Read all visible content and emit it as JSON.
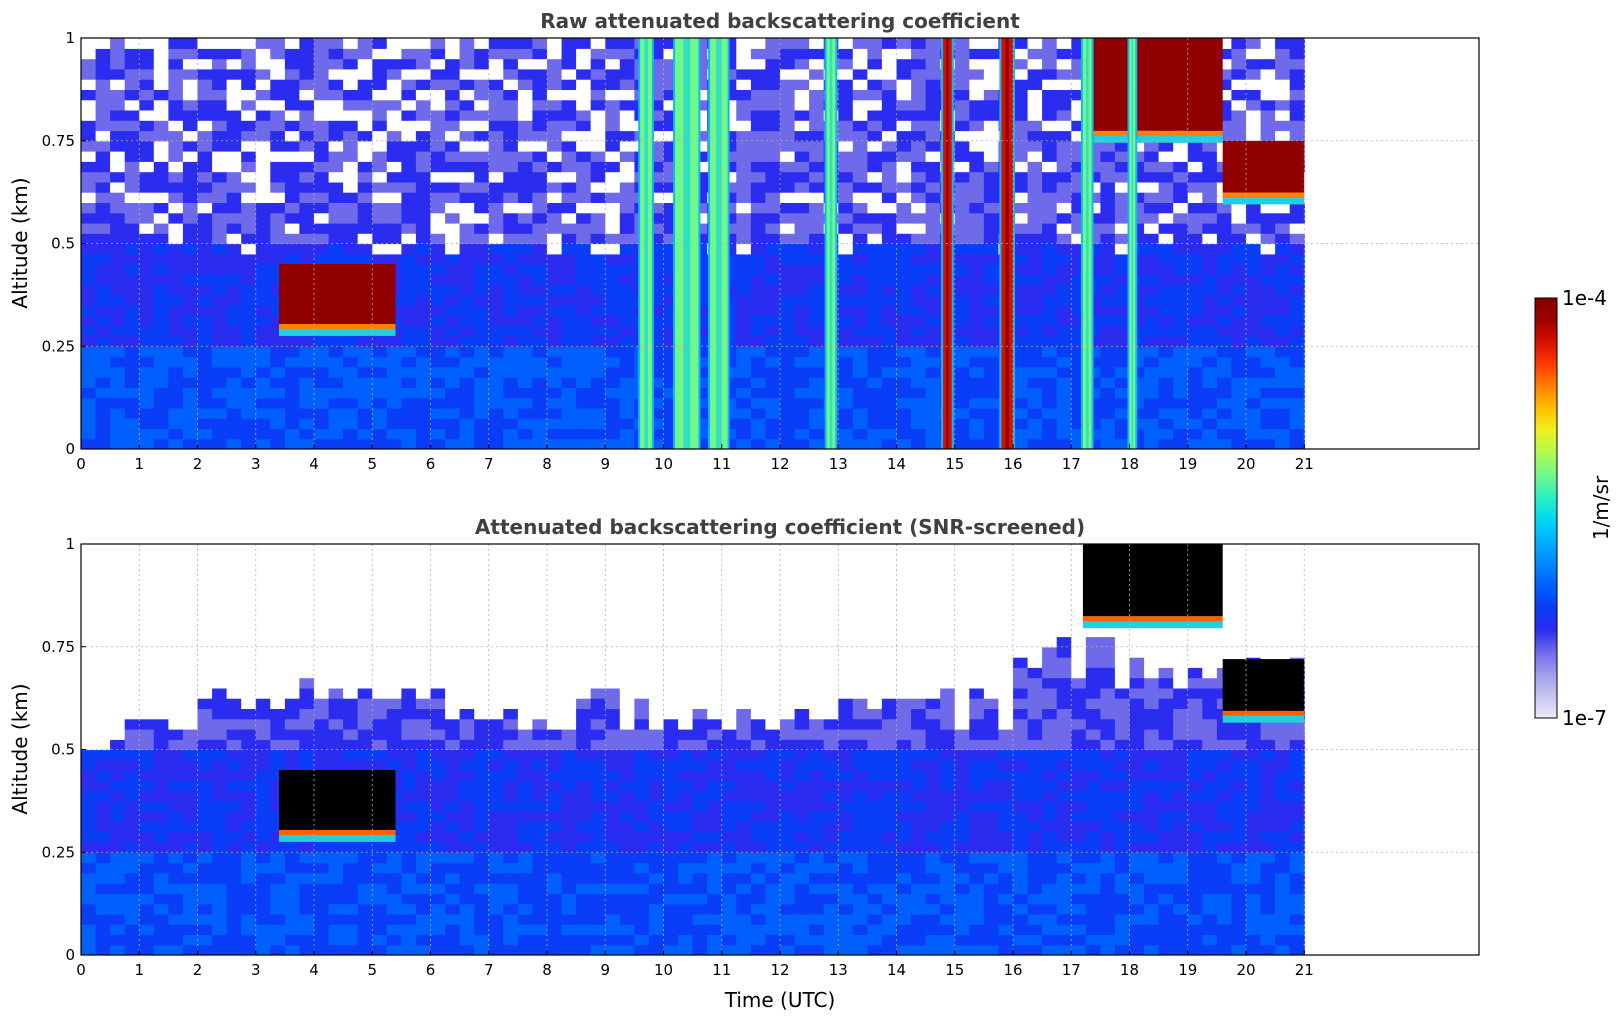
{
  "chart_data": [
    {
      "type": "heatmap",
      "title": "Raw attenuated backscattering coefficient",
      "xlabel": "",
      "ylabel": "Altitude (km)",
      "xlim": [
        0,
        24
      ],
      "ylim": [
        0,
        1
      ],
      "xticks": [
        0,
        1,
        2,
        3,
        4,
        5,
        6,
        7,
        8,
        9,
        10,
        11,
        12,
        13,
        14,
        15,
        16,
        17,
        18,
        19,
        20,
        21
      ],
      "yticks": [
        0,
        0.25,
        0.5,
        0.75,
        1
      ],
      "ytick_labels": [
        "0",
        "0.25",
        "0.5",
        "0.75",
        "1"
      ],
      "data_time_range": [
        0,
        21
      ],
      "grid": true,
      "screened": false,
      "features": [
        {
          "kind": "cloud",
          "time": [
            3.4,
            5.4
          ],
          "altitude": [
            0.28,
            0.45
          ],
          "level": "high"
        },
        {
          "kind": "cloud",
          "time": [
            17.2,
            19.6
          ],
          "altitude": [
            0.75,
            1.0
          ],
          "level": "high"
        },
        {
          "kind": "cloud",
          "time": [
            19.6,
            21.0
          ],
          "altitude": [
            0.6,
            0.75
          ],
          "level": "high"
        },
        {
          "kind": "column",
          "time": [
            9.6,
            9.8
          ],
          "level": "medium"
        },
        {
          "kind": "column",
          "time": [
            10.2,
            10.6
          ],
          "level": "medium"
        },
        {
          "kind": "column",
          "time": [
            10.8,
            11.1
          ],
          "level": "medium"
        },
        {
          "kind": "column",
          "time": [
            12.8,
            12.95
          ],
          "level": "medium"
        },
        {
          "kind": "column",
          "time": [
            14.8,
            14.95
          ],
          "level": "high"
        },
        {
          "kind": "column",
          "time": [
            15.8,
            16.0
          ],
          "level": "high"
        },
        {
          "kind": "column",
          "time": [
            17.2,
            17.35
          ],
          "level": "medium"
        },
        {
          "kind": "column",
          "time": [
            18.0,
            18.1
          ],
          "level": "medium"
        }
      ]
    },
    {
      "type": "heatmap",
      "title": "Attenuated backscattering coefficient (SNR-screened)",
      "xlabel": "Time (UTC)",
      "ylabel": "Altitude (km)",
      "xlim": [
        0,
        24
      ],
      "ylim": [
        0,
        1
      ],
      "xticks": [
        0,
        1,
        2,
        3,
        4,
        5,
        6,
        7,
        8,
        9,
        10,
        11,
        12,
        13,
        14,
        15,
        16,
        17,
        18,
        19,
        20,
        21
      ],
      "yticks": [
        0,
        0.25,
        0.5,
        0.75,
        1
      ],
      "ytick_labels": [
        "0",
        "0.25",
        "0.5",
        "0.75",
        "1"
      ],
      "data_time_range": [
        0,
        21
      ],
      "grid": true,
      "screened": true,
      "features": [
        {
          "kind": "cloud",
          "time": [
            3.4,
            5.4
          ],
          "altitude": [
            0.28,
            0.45
          ],
          "level": "saturated"
        },
        {
          "kind": "cloud",
          "time": [
            17.2,
            19.6
          ],
          "altitude": [
            0.8,
            1.0
          ],
          "level": "saturated"
        },
        {
          "kind": "cloud",
          "time": [
            19.6,
            21.0
          ],
          "altitude": [
            0.57,
            0.72
          ],
          "level": "saturated"
        }
      ]
    }
  ],
  "colorbar": {
    "label": "1/m/sr",
    "max_label": "1e-4",
    "min_label": "1e-7",
    "colors": [
      "#ecebf7",
      "#c6c4f0",
      "#9f9cec",
      "#6f6ae9",
      "#2a2cf0",
      "#0a3df8",
      "#0060ff",
      "#0088ff",
      "#00b0ff",
      "#00d8f0",
      "#2cf0c0",
      "#70f888",
      "#b0fa50",
      "#f0f020",
      "#ffc000",
      "#ff8000",
      "#ff3c00",
      "#d81000",
      "#a00000",
      "#800000"
    ]
  }
}
